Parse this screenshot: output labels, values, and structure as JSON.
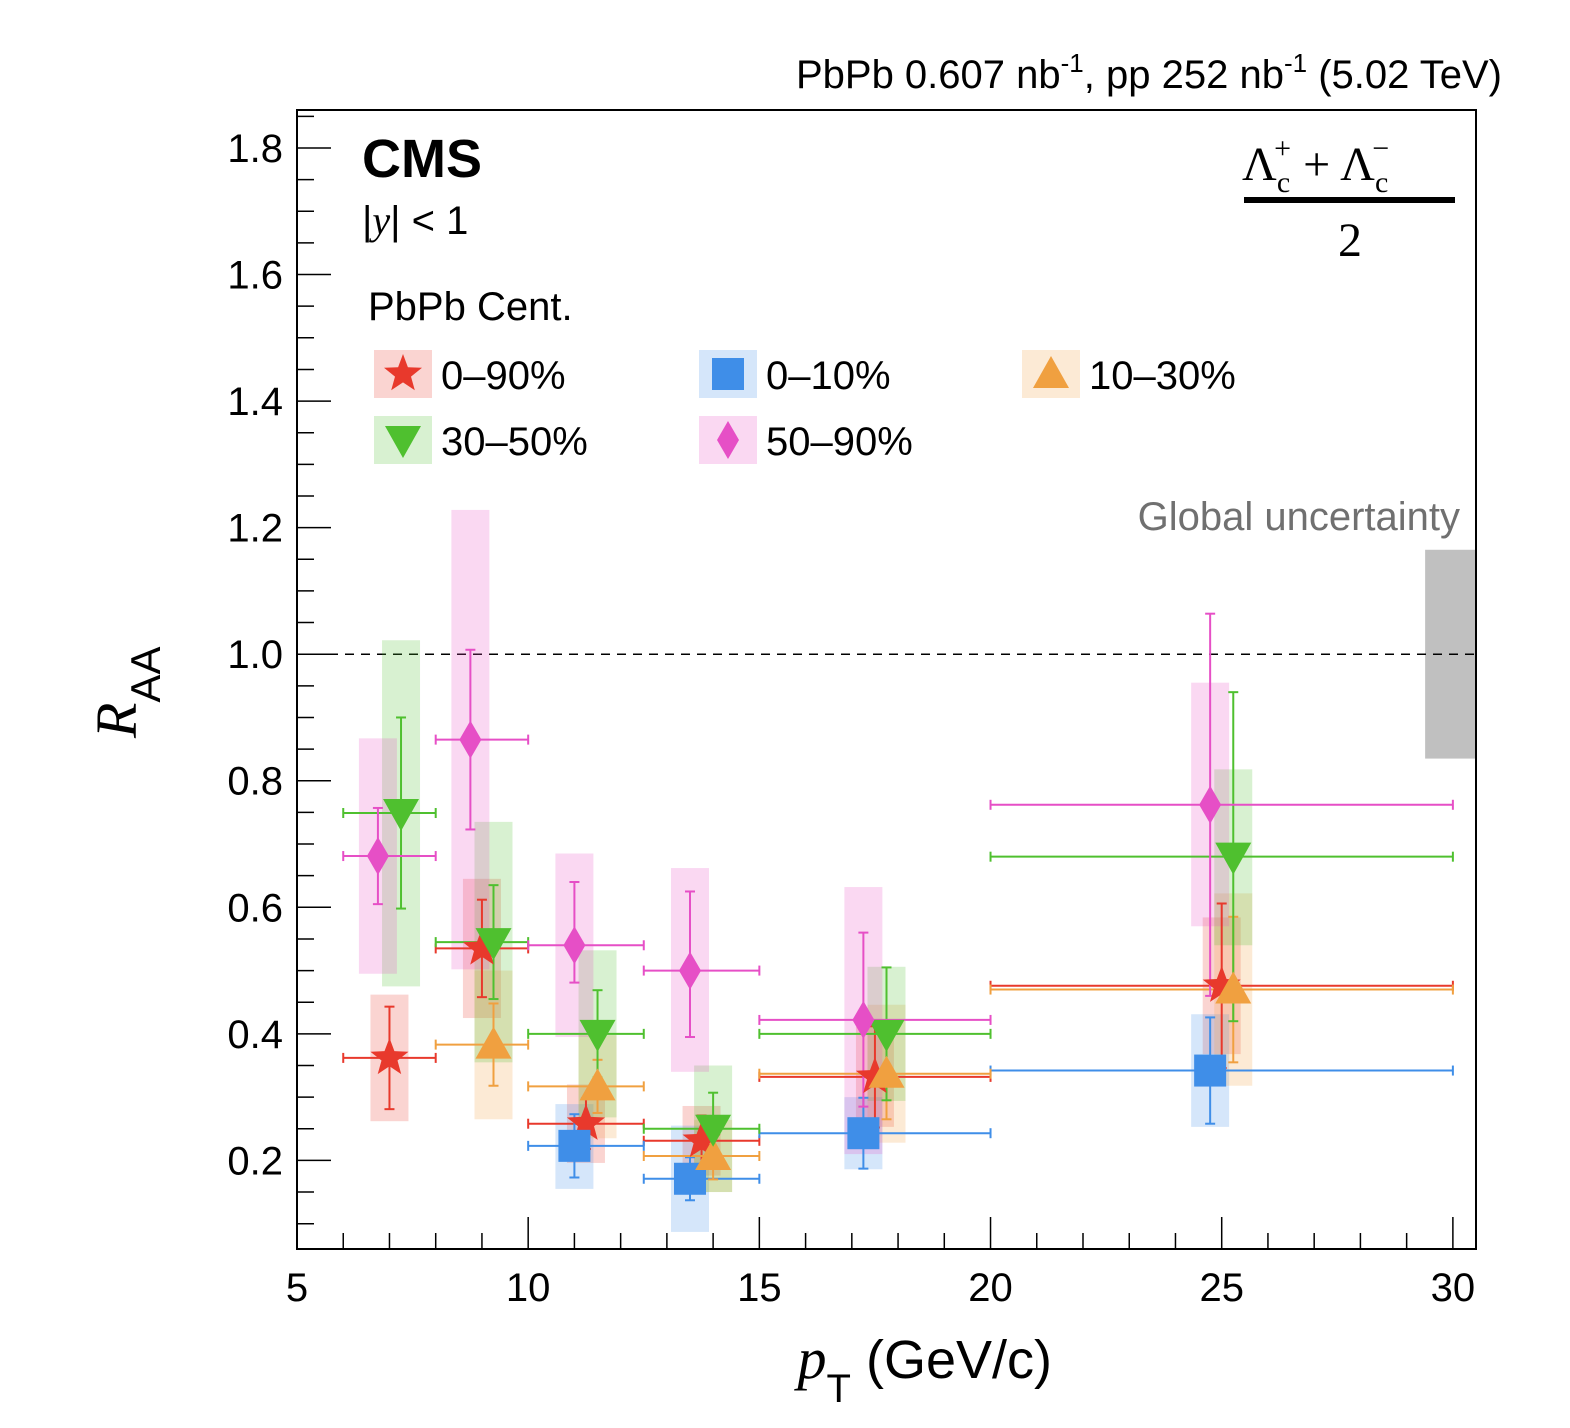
{
  "header": {
    "lumi_pbpb": "PbPb 0.607 nb",
    "lumi_pbpb_sup": "-1",
    "lumi_pp": ", pp 252 nb",
    "lumi_pp_sup": "-1",
    "energy": " (5.02 TeV)"
  },
  "labels": {
    "experiment": "CMS",
    "rapidity_pre": "|",
    "rapidity_var": "y",
    "rapidity_post": "| < 1",
    "legend_title": "PbPb Cent.",
    "global_uncertainty": "Global uncertainty",
    "particle_lambda": "Λ",
    "particle_sub": "c",
    "particle_plus_sup": "+",
    "particle_minus_sup": "−",
    "particle_plus": "+",
    "particle_denominator": "2"
  },
  "chart_data": {
    "type": "scatter",
    "xlabel_var": "p",
    "xlabel_sub": "T",
    "xlabel_unit": " (GeV/c)",
    "ylabel_var": "R",
    "ylabel_sub": "AA",
    "xlim": [
      5,
      30.5
    ],
    "ylim": [
      0.06,
      1.86
    ],
    "xticks": [
      "5",
      "10",
      "15",
      "20",
      "25",
      "30"
    ],
    "yticks": [
      "0.2",
      "0.4",
      "0.6",
      "0.8",
      "1.0",
      "1.2",
      "1.4",
      "1.6",
      "1.8"
    ],
    "reference_line": 1.0,
    "global_uncertainty_band": {
      "x": [
        29.4,
        30.5
      ],
      "y": [
        0.835,
        1.165
      ],
      "color": "#c0c0c0"
    },
    "legend_position": "top",
    "series": [
      {
        "name": "0–90%",
        "marker": "star",
        "color": "#e8392c",
        "points": [
          {
            "x": 7.0,
            "y": 0.362,
            "xlo": 6.0,
            "xhi": 8.0,
            "ylo": 0.281,
            "yhi": 0.443,
            "syslo": 0.262,
            "syshi": 0.462
          },
          {
            "x": 9.0,
            "y": 0.535,
            "xlo": 8.0,
            "xhi": 10.0,
            "ylo": 0.458,
            "yhi": 0.612,
            "syslo": 0.425,
            "syshi": 0.645
          },
          {
            "x": 11.25,
            "y": 0.258,
            "xlo": 10.0,
            "xhi": 12.5,
            "ylo": 0.218,
            "yhi": 0.298,
            "syslo": 0.196,
            "syshi": 0.32
          },
          {
            "x": 13.75,
            "y": 0.231,
            "xlo": 12.5,
            "xhi": 15.0,
            "ylo": 0.191,
            "yhi": 0.271,
            "syslo": 0.176,
            "syshi": 0.286
          },
          {
            "x": 17.5,
            "y": 0.332,
            "xlo": 15.0,
            "xhi": 20.0,
            "ylo": 0.252,
            "yhi": 0.412,
            "syslo": 0.253,
            "syshi": 0.411
          },
          {
            "x": 25.0,
            "y": 0.476,
            "xlo": 20.0,
            "xhi": 30.0,
            "ylo": 0.346,
            "yhi": 0.606,
            "syslo": 0.368,
            "syshi": 0.584
          }
        ]
      },
      {
        "name": "0–10%",
        "marker": "square",
        "color": "#3f8ee8",
        "points": [
          {
            "x": 11.0,
            "y": 0.223,
            "xlo": 10.0,
            "xhi": 12.5,
            "ylo": 0.173,
            "yhi": 0.273,
            "syslo": 0.155,
            "syshi": 0.289
          },
          {
            "x": 13.5,
            "y": 0.171,
            "xlo": 12.5,
            "xhi": 15.0,
            "ylo": 0.137,
            "yhi": 0.205,
            "syslo": 0.087,
            "syshi": 0.255
          },
          {
            "x": 17.25,
            "y": 0.243,
            "xlo": 15.0,
            "xhi": 20.0,
            "ylo": 0.187,
            "yhi": 0.299,
            "syslo": 0.186,
            "syshi": 0.3
          },
          {
            "x": 24.75,
            "y": 0.342,
            "xlo": 20.0,
            "xhi": 30.0,
            "ylo": 0.258,
            "yhi": 0.426,
            "syslo": 0.253,
            "syshi": 0.431
          }
        ]
      },
      {
        "name": "10–30%",
        "marker": "triangle-up",
        "color": "#f0a040",
        "points": [
          {
            "x": 9.25,
            "y": 0.383,
            "xlo": 8.0,
            "xhi": 10.0,
            "ylo": 0.318,
            "yhi": 0.448,
            "syslo": 0.265,
            "syshi": 0.5
          },
          {
            "x": 11.5,
            "y": 0.317,
            "xlo": 10.0,
            "xhi": 12.5,
            "ylo": 0.275,
            "yhi": 0.359,
            "syslo": 0.235,
            "syshi": 0.398
          },
          {
            "x": 14.0,
            "y": 0.207,
            "xlo": 12.5,
            "xhi": 15.0,
            "ylo": 0.17,
            "yhi": 0.244,
            "syslo": 0.15,
            "syshi": 0.264
          },
          {
            "x": 17.75,
            "y": 0.337,
            "xlo": 15.0,
            "xhi": 20.0,
            "ylo": 0.265,
            "yhi": 0.409,
            "syslo": 0.228,
            "syshi": 0.446
          },
          {
            "x": 25.25,
            "y": 0.47,
            "xlo": 20.0,
            "xhi": 30.0,
            "ylo": 0.355,
            "yhi": 0.585,
            "syslo": 0.318,
            "syshi": 0.622
          }
        ]
      },
      {
        "name": "30–50%",
        "marker": "triangle-down",
        "color": "#4fc02f",
        "points": [
          {
            "x": 7.25,
            "y": 0.749,
            "xlo": 6.0,
            "xhi": 8.0,
            "ylo": 0.598,
            "yhi": 0.9,
            "syslo": 0.475,
            "syshi": 1.022
          },
          {
            "x": 9.25,
            "y": 0.545,
            "xlo": 8.0,
            "xhi": 10.0,
            "ylo": 0.455,
            "yhi": 0.635,
            "syslo": 0.355,
            "syshi": 0.735
          },
          {
            "x": 11.5,
            "y": 0.4,
            "xlo": 10.0,
            "xhi": 12.5,
            "ylo": 0.331,
            "yhi": 0.469,
            "syslo": 0.268,
            "syshi": 0.532
          },
          {
            "x": 14.0,
            "y": 0.25,
            "xlo": 12.5,
            "xhi": 15.0,
            "ylo": 0.193,
            "yhi": 0.307,
            "syslo": 0.15,
            "syshi": 0.35
          },
          {
            "x": 17.75,
            "y": 0.4,
            "xlo": 15.0,
            "xhi": 20.0,
            "ylo": 0.295,
            "yhi": 0.505,
            "syslo": 0.294,
            "syshi": 0.506
          },
          {
            "x": 25.25,
            "y": 0.68,
            "xlo": 20.0,
            "xhi": 30.0,
            "ylo": 0.42,
            "yhi": 0.94,
            "syslo": 0.54,
            "syshi": 0.818
          }
        ]
      },
      {
        "name": "50–90%",
        "marker": "diamond",
        "color": "#e64fc6",
        "points": [
          {
            "x": 6.75,
            "y": 0.681,
            "xlo": 6.0,
            "xhi": 8.0,
            "ylo": 0.605,
            "yhi": 0.757,
            "syslo": 0.495,
            "syshi": 0.867
          },
          {
            "x": 8.75,
            "y": 0.865,
            "xlo": 8.0,
            "xhi": 10.0,
            "ylo": 0.723,
            "yhi": 1.007,
            "syslo": 0.502,
            "syshi": 1.228
          },
          {
            "x": 11.0,
            "y": 0.54,
            "xlo": 10.0,
            "xhi": 12.5,
            "ylo": 0.481,
            "yhi": 0.64,
            "syslo": 0.395,
            "syshi": 0.685
          },
          {
            "x": 13.5,
            "y": 0.5,
            "xlo": 12.5,
            "xhi": 15.0,
            "ylo": 0.395,
            "yhi": 0.625,
            "syslo": 0.34,
            "syshi": 0.662
          },
          {
            "x": 17.25,
            "y": 0.422,
            "xlo": 15.0,
            "xhi": 20.0,
            "ylo": 0.285,
            "yhi": 0.56,
            "syslo": 0.21,
            "syshi": 0.632
          },
          {
            "x": 24.75,
            "y": 0.762,
            "xlo": 20.0,
            "xhi": 30.0,
            "ylo": 0.46,
            "yhi": 1.064,
            "syslo": 0.57,
            "syshi": 0.955
          }
        ]
      }
    ]
  }
}
